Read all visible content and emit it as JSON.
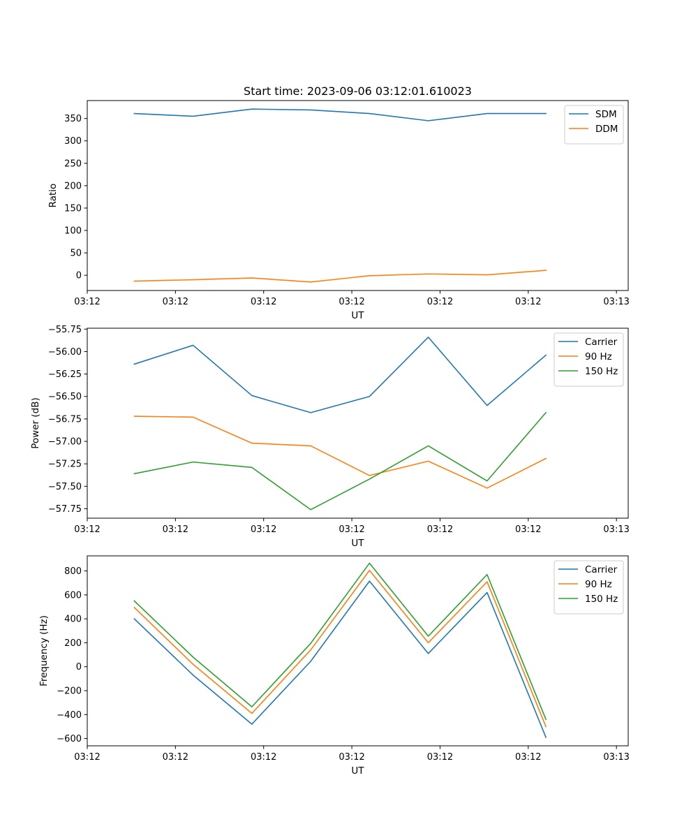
{
  "figure_title": "Start time: 2023-09-06 03:12:01.610023",
  "colors": {
    "blue": "#1f77b4",
    "orange": "#ff7f0e",
    "green": "#2ca02c"
  },
  "chart_data": [
    {
      "type": "line",
      "title": "Start time: 2023-09-06 03:12:01.610023",
      "xlabel": "UT",
      "ylabel": "Ratio",
      "x": [
        1,
        2,
        3,
        4,
        5,
        6,
        7,
        8
      ],
      "xlim": [
        0.2,
        9.4
      ],
      "xticks": [
        0.2,
        1.7,
        3.2,
        4.7,
        6.2,
        7.7,
        9.2
      ],
      "xtick_labels": [
        "03:12",
        "03:12",
        "03:12",
        "03:12",
        "03:12",
        "03:12",
        "03:13"
      ],
      "ylim": [
        -34,
        390
      ],
      "yticks": [
        0,
        50,
        100,
        150,
        200,
        250,
        300,
        350
      ],
      "ytick_labels": [
        "0",
        "50",
        "100",
        "150",
        "200",
        "250",
        "300",
        "350"
      ],
      "legend_position": "top-right",
      "series": [
        {
          "name": "SDM",
          "color": "#1f77b4",
          "values": [
            361,
            355,
            371,
            369,
            361,
            345,
            361,
            361
          ]
        },
        {
          "name": "DDM",
          "color": "#ff7f0e",
          "values": [
            -13,
            -10,
            -6,
            -15,
            -1,
            3,
            1,
            11
          ]
        }
      ]
    },
    {
      "type": "line",
      "title": "",
      "xlabel": "UT",
      "ylabel": "Power (dB)",
      "x": [
        1,
        2,
        3,
        4,
        5,
        6,
        7,
        8
      ],
      "xlim": [
        0.2,
        9.4
      ],
      "xticks": [
        0.2,
        1.7,
        3.2,
        4.7,
        6.2,
        7.7,
        9.2
      ],
      "xtick_labels": [
        "03:12",
        "03:12",
        "03:12",
        "03:12",
        "03:12",
        "03:12",
        "03:13"
      ],
      "ylim": [
        -57.855,
        -55.74
      ],
      "yticks": [
        -57.75,
        -57.5,
        -57.25,
        -57.0,
        -56.75,
        -56.5,
        -56.25,
        -56.0,
        -55.75
      ],
      "ytick_labels": [
        "−57.75",
        "−57.50",
        "−57.25",
        "−57.00",
        "−56.75",
        "−56.50",
        "−56.25",
        "−56.00",
        "−55.75"
      ],
      "legend_position": "top-right",
      "series": [
        {
          "name": "Carrier",
          "color": "#1f77b4",
          "values": [
            -56.14,
            -55.93,
            -56.49,
            -56.68,
            -56.5,
            -55.84,
            -56.6,
            -56.04
          ]
        },
        {
          "name": "90 Hz",
          "color": "#ff7f0e",
          "values": [
            -56.72,
            -56.73,
            -57.02,
            -57.05,
            -57.38,
            -57.22,
            -57.52,
            -57.19
          ]
        },
        {
          "name": "150 Hz",
          "color": "#2ca02c",
          "values": [
            -57.36,
            -57.23,
            -57.29,
            -57.76,
            -57.42,
            -57.05,
            -57.44,
            -56.68
          ]
        }
      ]
    },
    {
      "type": "line",
      "title": "",
      "xlabel": "UT",
      "ylabel": "Frequency (Hz)",
      "x": [
        1,
        2,
        3,
        4,
        5,
        6,
        7,
        8
      ],
      "xlim": [
        0.2,
        9.4
      ],
      "xticks": [
        0.2,
        1.7,
        3.2,
        4.7,
        6.2,
        7.7,
        9.2
      ],
      "xtick_labels": [
        "03:12",
        "03:12",
        "03:12",
        "03:12",
        "03:12",
        "03:12",
        "03:13"
      ],
      "ylim": [
        -661,
        926
      ],
      "yticks": [
        -600,
        -400,
        -200,
        0,
        200,
        400,
        600,
        800
      ],
      "ytick_labels": [
        "−600",
        "−400",
        "−200",
        "0",
        "200",
        "400",
        "600",
        "800"
      ],
      "legend_position": "top-right",
      "series": [
        {
          "name": "Carrier",
          "color": "#1f77b4",
          "values": [
            400,
            -70,
            -480,
            45,
            715,
            110,
            620,
            -590
          ]
        },
        {
          "name": "90 Hz",
          "color": "#ff7f0e",
          "values": [
            495,
            20,
            -390,
            140,
            805,
            200,
            710,
            -500
          ]
        },
        {
          "name": "150 Hz",
          "color": "#2ca02c",
          "values": [
            550,
            80,
            -335,
            195,
            865,
            255,
            770,
            -440
          ]
        }
      ]
    }
  ]
}
